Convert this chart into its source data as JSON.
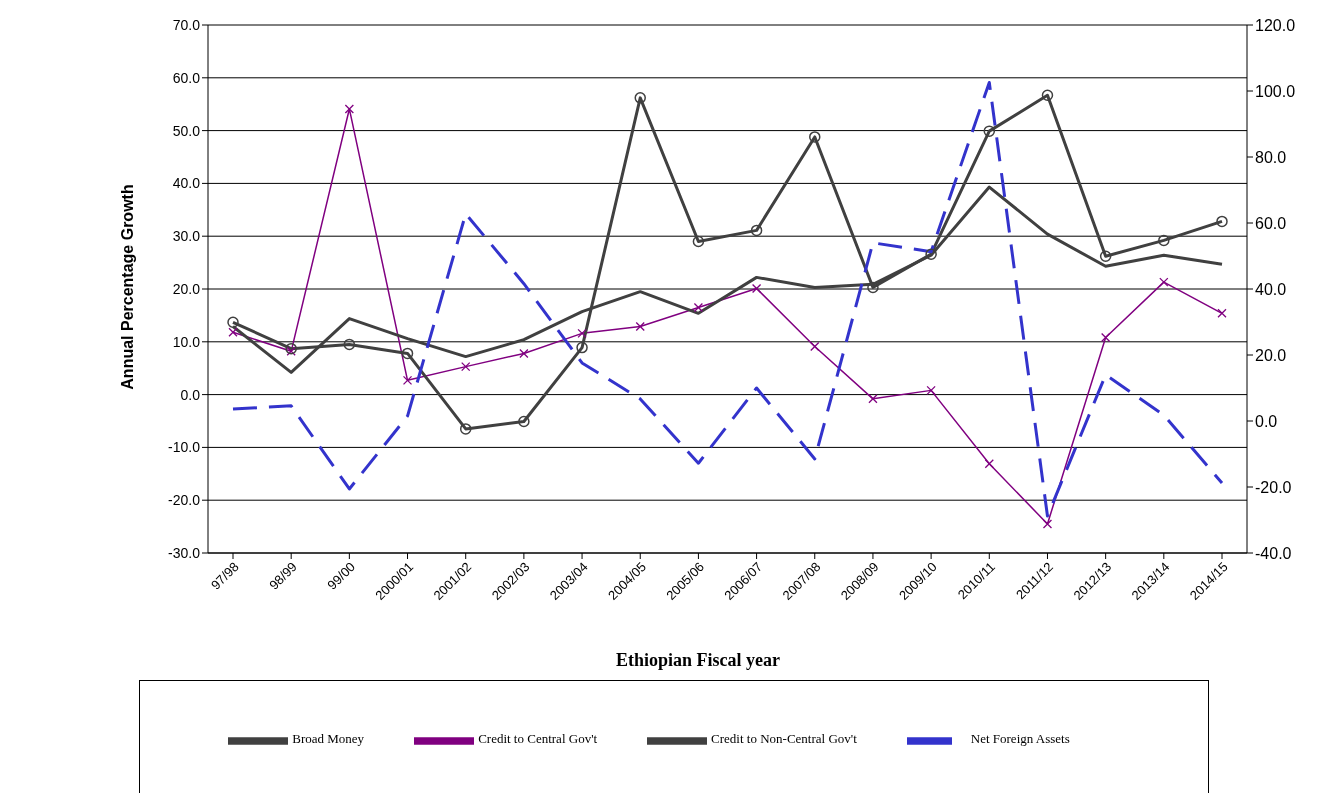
{
  "chart_data": {
    "type": "line",
    "xlabel": "Ethiopian Fiscal year",
    "ylabel": "Annual Percentage Growth",
    "categories": [
      "97/98",
      "98/99",
      "99/00",
      "2000/01",
      "2001/02",
      "2002/03",
      "2003/04",
      "2004/05",
      "2005/06",
      "2006/07",
      "2007/08",
      "2008/09",
      "2009/10",
      "2010/11",
      "2011/12",
      "2012/13",
      "2013/14",
      "2014/15"
    ],
    "series": [
      {
        "name": "Credit to Central Gov't",
        "color": "#800080",
        "marker": "cross",
        "line_style": "solid",
        "values": [
          11.8,
          8.2,
          54.1,
          2.7,
          5.3,
          7.8,
          11.6,
          12.9,
          16.5,
          20.1,
          9.1,
          -0.8,
          0.8,
          -13.1,
          -24.5,
          10.8,
          21.3,
          15.4
        ]
      },
      {
        "name": "Credit to Non-Central Gov't",
        "color": "#404040",
        "marker": "circle",
        "line_style": "solid",
        "values": [
          13.7,
          8.7,
          9.5,
          7.8,
          -6.5,
          -5.1,
          8.9,
          56.2,
          29.0,
          31.1,
          48.8,
          20.3,
          26.6,
          49.9,
          56.7,
          26.2,
          29.2,
          32.8
        ]
      },
      {
        "name": "Broad Money",
        "color": "#404040",
        "marker": "none",
        "line_style": "solid",
        "values": [
          12.9,
          4.2,
          14.4,
          10.6,
          7.2,
          10.4,
          15.7,
          19.5,
          15.4,
          22.2,
          20.3,
          20.9,
          26.4,
          39.3,
          30.4,
          24.3,
          26.4,
          24.7
        ]
      },
      {
        "name": "Net Foreign Assets",
        "color": "#3333cc",
        "marker": "none",
        "line_style": "dashed",
        "axis": "y2",
        "values": [
          3.6,
          4.6,
          -20.6,
          1.5,
          62.8,
          41.6,
          17.6,
          6.7,
          -12.8,
          10.0,
          -11.5,
          54.0,
          51.3,
          102.6,
          -28.8,
          14.0,
          1.8,
          -18.8
        ]
      }
    ],
    "ylim": [
      -30,
      70
    ],
    "yticks": [
      {
        "value": -30,
        "label": "-30.0"
      },
      {
        "value": -20,
        "label": "-20.0"
      },
      {
        "value": -10,
        "label": "-10.0"
      },
      {
        "value": 0,
        "label": "0.0"
      },
      {
        "value": 10,
        "label": "10.0"
      },
      {
        "value": 20,
        "label": "20.0"
      },
      {
        "value": 30,
        "label": "30.0"
      },
      {
        "value": 40,
        "label": "40.0"
      },
      {
        "value": 50,
        "label": "50.0"
      },
      {
        "value": 60,
        "label": "60.0"
      },
      {
        "value": 70,
        "label": "70.0"
      }
    ],
    "y2lim": [
      -40,
      120
    ],
    "y2ticks": [
      {
        "value": -40,
        "label": "-40.0"
      },
      {
        "value": -20,
        "label": "-20.0"
      },
      {
        "value": 0,
        "label": "0.0"
      },
      {
        "value": 20,
        "label": "20.0"
      },
      {
        "value": 40,
        "label": "40.0"
      },
      {
        "value": 60,
        "label": "60.0"
      },
      {
        "value": 80,
        "label": "80.0"
      },
      {
        "value": 100,
        "label": "100.0"
      },
      {
        "value": 120,
        "label": "120.0"
      }
    ],
    "grid": "y",
    "legend": "bottom"
  }
}
